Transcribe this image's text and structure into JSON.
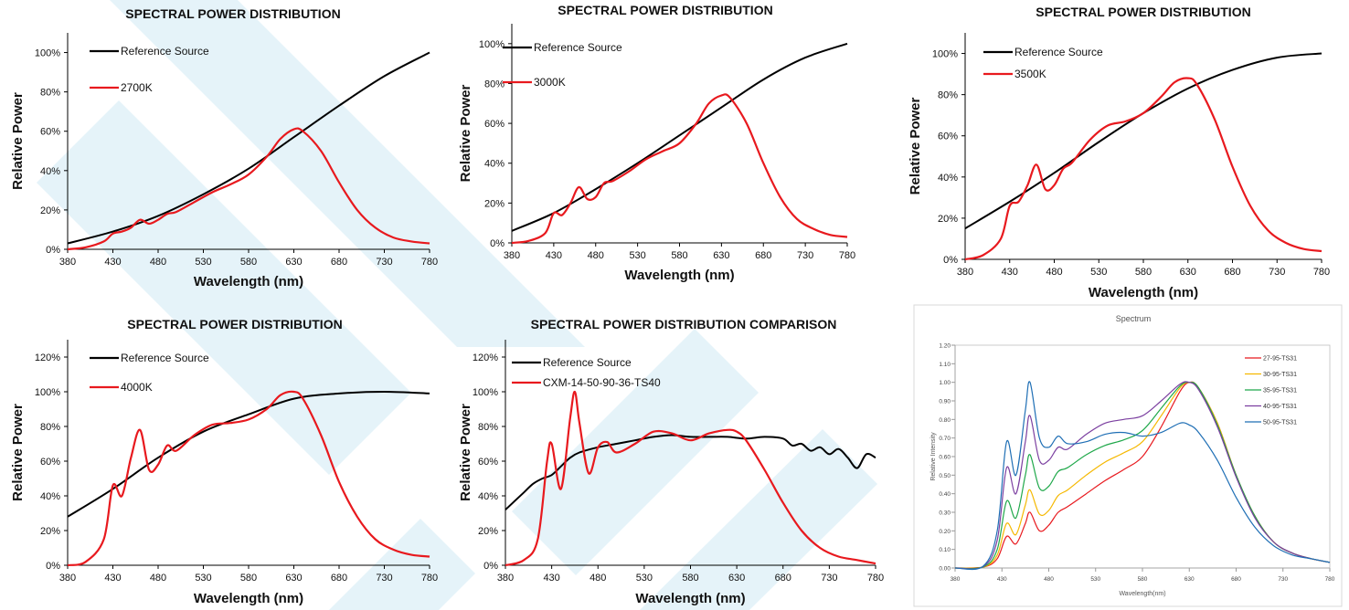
{
  "chart_data": [
    {
      "type": "line",
      "title": "SPECTRAL POWER DISTRIBUTION",
      "xlabel": "Wavelength (nm)",
      "ylabel": "Relative Power",
      "xlim": [
        380,
        780
      ],
      "ylim": [
        0,
        1.1
      ],
      "xticks": [
        380,
        430,
        480,
        530,
        580,
        630,
        680,
        730,
        780
      ],
      "xtick_labels": [
        "380",
        "430",
        "480",
        "530",
        "580",
        "630",
        "680",
        "730",
        "780"
      ],
      "yticks": [
        0,
        0.2,
        0.4,
        0.6,
        0.8,
        1.0
      ],
      "ytick_labels": [
        "0%",
        "20%",
        "40%",
        "60%",
        "80%",
        "100%"
      ],
      "legend": "top-left",
      "series": [
        {
          "name": "Reference Source",
          "color": "#000000",
          "x": [
            380,
            430,
            480,
            530,
            580,
            630,
            680,
            730,
            780
          ],
          "y": [
            0.03,
            0.09,
            0.17,
            0.28,
            0.41,
            0.57,
            0.73,
            0.88,
            1.0
          ]
        },
        {
          "name": "2700K",
          "color": "#e8191e",
          "x": [
            380,
            400,
            420,
            430,
            440,
            450,
            460,
            470,
            480,
            490,
            500,
            520,
            540,
            560,
            580,
            600,
            615,
            630,
            640,
            660,
            680,
            700,
            720,
            740,
            760,
            780
          ],
          "y": [
            0.0,
            0.01,
            0.04,
            0.08,
            0.09,
            0.11,
            0.15,
            0.13,
            0.15,
            0.18,
            0.19,
            0.24,
            0.29,
            0.33,
            0.38,
            0.47,
            0.56,
            0.61,
            0.6,
            0.5,
            0.34,
            0.2,
            0.11,
            0.06,
            0.04,
            0.03
          ]
        }
      ]
    },
    {
      "type": "line",
      "title": "SPECTRAL POWER DISTRIBUTION",
      "xlabel": "Wavelength (nm)",
      "ylabel": "Relative Power",
      "xlim": [
        380,
        780
      ],
      "ylim": [
        0,
        1.1
      ],
      "xticks": [
        380,
        430,
        480,
        530,
        580,
        630,
        680,
        730,
        780
      ],
      "xtick_labels": [
        "380",
        "430",
        "480",
        "530",
        "580",
        "630",
        "680",
        "730",
        "780"
      ],
      "yticks": [
        0,
        0.2,
        0.4,
        0.6,
        0.8,
        1.0
      ],
      "ytick_labels": [
        "0%",
        "20%",
        "40%",
        "60%",
        "80%",
        "100%"
      ],
      "legend": "top-left",
      "series": [
        {
          "name": "Reference Source",
          "color": "#000000",
          "x": [
            380,
            430,
            480,
            530,
            580,
            630,
            680,
            730,
            780
          ],
          "y": [
            0.06,
            0.15,
            0.27,
            0.4,
            0.54,
            0.68,
            0.82,
            0.93,
            1.0
          ]
        },
        {
          "name": "3000K",
          "color": "#e8191e",
          "x": [
            380,
            400,
            420,
            430,
            440,
            450,
            460,
            470,
            480,
            490,
            500,
            520,
            540,
            560,
            580,
            600,
            615,
            630,
            640,
            660,
            680,
            700,
            720,
            740,
            760,
            780
          ],
          "y": [
            0.0,
            0.01,
            0.05,
            0.15,
            0.14,
            0.2,
            0.28,
            0.22,
            0.23,
            0.3,
            0.31,
            0.36,
            0.42,
            0.46,
            0.5,
            0.6,
            0.7,
            0.74,
            0.73,
            0.6,
            0.4,
            0.23,
            0.12,
            0.07,
            0.04,
            0.03
          ]
        }
      ]
    },
    {
      "type": "line",
      "title": "SPECTRAL POWER DISTRIBUTION",
      "xlabel": "Wavelength (nm)",
      "ylabel": "Relative Power",
      "xlim": [
        380,
        780
      ],
      "ylim": [
        0,
        1.1
      ],
      "xticks": [
        380,
        430,
        480,
        530,
        580,
        630,
        680,
        730,
        780
      ],
      "xtick_labels": [
        "380",
        "430",
        "480",
        "530",
        "580",
        "630",
        "680",
        "730",
        "780"
      ],
      "yticks": [
        0,
        0.2,
        0.4,
        0.6,
        0.8,
        1.0
      ],
      "ytick_labels": [
        "0%",
        "20%",
        "40%",
        "60%",
        "80%",
        "100%"
      ],
      "legend": "top-left",
      "series": [
        {
          "name": "Reference Source",
          "color": "#000000",
          "x": [
            380,
            430,
            480,
            530,
            580,
            630,
            680,
            730,
            780
          ],
          "y": [
            0.15,
            0.28,
            0.42,
            0.57,
            0.71,
            0.83,
            0.92,
            0.98,
            1.0
          ]
        },
        {
          "name": "3500K",
          "color": "#e8191e",
          "x": [
            380,
            400,
            420,
            430,
            440,
            450,
            460,
            470,
            480,
            490,
            500,
            520,
            540,
            560,
            580,
            600,
            615,
            630,
            640,
            660,
            680,
            700,
            720,
            740,
            760,
            780
          ],
          "y": [
            0.0,
            0.02,
            0.1,
            0.26,
            0.28,
            0.36,
            0.46,
            0.34,
            0.36,
            0.44,
            0.47,
            0.58,
            0.65,
            0.67,
            0.71,
            0.79,
            0.86,
            0.88,
            0.85,
            0.68,
            0.45,
            0.26,
            0.14,
            0.08,
            0.05,
            0.04
          ]
        }
      ]
    },
    {
      "type": "line",
      "title": "SPECTRAL POWER DISTRIBUTION",
      "xlabel": "Wavelength (nm)",
      "ylabel": "Relative Power",
      "xlim": [
        380,
        780
      ],
      "ylim": [
        0,
        1.3
      ],
      "xticks": [
        380,
        430,
        480,
        530,
        580,
        630,
        680,
        730,
        780
      ],
      "xtick_labels": [
        "380",
        "430",
        "480",
        "530",
        "580",
        "630",
        "680",
        "730",
        "780"
      ],
      "yticks": [
        0,
        0.2,
        0.4,
        0.6,
        0.8,
        1.0,
        1.2
      ],
      "ytick_labels": [
        "0%",
        "20%",
        "40%",
        "60%",
        "80%",
        "100%",
        "120%"
      ],
      "legend": "top-left",
      "series": [
        {
          "name": "Reference Source",
          "color": "#000000",
          "x": [
            380,
            430,
            480,
            530,
            580,
            630,
            680,
            730,
            780
          ],
          "y": [
            0.28,
            0.44,
            0.62,
            0.77,
            0.87,
            0.96,
            0.99,
            1.0,
            0.99
          ]
        },
        {
          "name": "4000K",
          "color": "#e8191e",
          "x": [
            380,
            400,
            420,
            430,
            440,
            450,
            460,
            470,
            480,
            490,
            500,
            520,
            540,
            560,
            580,
            600,
            615,
            630,
            640,
            660,
            680,
            700,
            720,
            740,
            760,
            780
          ],
          "y": [
            0.0,
            0.02,
            0.15,
            0.46,
            0.4,
            0.62,
            0.78,
            0.55,
            0.58,
            0.69,
            0.66,
            0.75,
            0.81,
            0.82,
            0.84,
            0.9,
            0.98,
            1.0,
            0.96,
            0.75,
            0.48,
            0.28,
            0.15,
            0.09,
            0.06,
            0.05
          ]
        }
      ]
    },
    {
      "type": "line",
      "title": "SPECTRAL POWER DISTRIBUTION COMPARISON",
      "xlabel": "Wavelength (nm)",
      "ylabel": "Relative Power",
      "xlim": [
        380,
        780
      ],
      "ylim": [
        0,
        1.3
      ],
      "xticks": [
        380,
        430,
        480,
        530,
        580,
        630,
        680,
        730,
        780
      ],
      "xtick_labels": [
        "380",
        "430",
        "480",
        "530",
        "580",
        "630",
        "680",
        "730",
        "780"
      ],
      "yticks": [
        0,
        0.2,
        0.4,
        0.6,
        0.8,
        1.0,
        1.2
      ],
      "ytick_labels": [
        "0%",
        "20%",
        "40%",
        "60%",
        "80%",
        "100%",
        "120%"
      ],
      "legend": "top-left",
      "series": [
        {
          "name": "Reference Source",
          "color": "#000000",
          "x": [
            380,
            390,
            400,
            410,
            420,
            430,
            440,
            450,
            460,
            480,
            500,
            520,
            540,
            560,
            580,
            600,
            620,
            640,
            660,
            680,
            690,
            700,
            710,
            720,
            730,
            740,
            750,
            760,
            770,
            780
          ],
          "y": [
            0.32,
            0.37,
            0.42,
            0.47,
            0.5,
            0.52,
            0.57,
            0.62,
            0.65,
            0.68,
            0.7,
            0.72,
            0.74,
            0.75,
            0.74,
            0.74,
            0.74,
            0.73,
            0.74,
            0.73,
            0.69,
            0.7,
            0.66,
            0.68,
            0.64,
            0.67,
            0.62,
            0.56,
            0.64,
            0.62
          ]
        },
        {
          "name": "CXM-14-50-90-36-TS40",
          "color": "#e8191e",
          "x": [
            380,
            400,
            415,
            425,
            430,
            440,
            450,
            455,
            460,
            470,
            480,
            490,
            500,
            520,
            540,
            560,
            580,
            600,
            620,
            630,
            640,
            660,
            680,
            700,
            720,
            740,
            760,
            780
          ],
          "y": [
            0.0,
            0.03,
            0.15,
            0.6,
            0.7,
            0.44,
            0.85,
            1.0,
            0.82,
            0.53,
            0.68,
            0.71,
            0.65,
            0.7,
            0.77,
            0.76,
            0.72,
            0.76,
            0.78,
            0.77,
            0.72,
            0.55,
            0.36,
            0.2,
            0.1,
            0.05,
            0.03,
            0.01
          ]
        }
      ]
    },
    {
      "type": "line",
      "title": "Spectrum",
      "xlabel": "Wavelength(nm)",
      "ylabel": "Relative Intensity",
      "xlim": [
        380,
        780
      ],
      "ylim": [
        0,
        1.2
      ],
      "xticks": [
        380,
        430,
        480,
        530,
        580,
        630,
        680,
        730,
        780
      ],
      "xtick_labels": [
        "380",
        "430",
        "480",
        "530",
        "580",
        "630",
        "680",
        "730",
        "780"
      ],
      "yticks": [
        0,
        0.1,
        0.2,
        0.3,
        0.4,
        0.5,
        0.6,
        0.7,
        0.8,
        0.9,
        1.0,
        1.1,
        1.2
      ],
      "ytick_labels": [
        "0.00",
        "0.10",
        "0.20",
        "0.30",
        "0.40",
        "0.50",
        "0.60",
        "0.70",
        "0.80",
        "0.90",
        "1.00",
        "1.10",
        "1.20"
      ],
      "legend": "right",
      "series": [
        {
          "name": "27-95-TS31",
          "color": "#e8191e",
          "x": [
            380,
            410,
            425,
            435,
            445,
            455,
            460,
            470,
            480,
            490,
            500,
            520,
            540,
            560,
            580,
            600,
            620,
            630,
            640,
            660,
            680,
            700,
            720,
            740,
            760,
            780
          ],
          "y": [
            0.0,
            0.005,
            0.05,
            0.17,
            0.13,
            0.24,
            0.3,
            0.2,
            0.23,
            0.3,
            0.33,
            0.4,
            0.47,
            0.53,
            0.6,
            0.76,
            0.95,
            1.0,
            0.97,
            0.78,
            0.5,
            0.28,
            0.14,
            0.08,
            0.05,
            0.03
          ]
        },
        {
          "name": "30-95-TS31",
          "color": "#f5b800",
          "x": [
            380,
            410,
            425,
            435,
            445,
            455,
            460,
            470,
            480,
            490,
            500,
            520,
            540,
            560,
            580,
            600,
            620,
            630,
            640,
            660,
            680,
            700,
            720,
            740,
            760,
            780
          ],
          "y": [
            0.0,
            0.005,
            0.07,
            0.24,
            0.18,
            0.34,
            0.42,
            0.29,
            0.31,
            0.39,
            0.42,
            0.5,
            0.57,
            0.62,
            0.68,
            0.82,
            0.97,
            1.0,
            0.97,
            0.78,
            0.5,
            0.28,
            0.14,
            0.08,
            0.05,
            0.03
          ]
        },
        {
          "name": "35-95-TS31",
          "color": "#1fa84a",
          "x": [
            380,
            410,
            425,
            435,
            445,
            455,
            460,
            470,
            480,
            490,
            500,
            520,
            540,
            560,
            580,
            600,
            620,
            630,
            640,
            660,
            680,
            700,
            720,
            740,
            760,
            780
          ],
          "y": [
            0.0,
            0.006,
            0.1,
            0.36,
            0.27,
            0.5,
            0.61,
            0.43,
            0.44,
            0.52,
            0.54,
            0.61,
            0.66,
            0.69,
            0.74,
            0.86,
            0.98,
            1.0,
            0.97,
            0.77,
            0.5,
            0.28,
            0.14,
            0.08,
            0.05,
            0.03
          ]
        },
        {
          "name": "40-95-TS31",
          "color": "#7b3fa0",
          "x": [
            380,
            410,
            425,
            435,
            445,
            455,
            460,
            470,
            480,
            490,
            500,
            520,
            540,
            560,
            580,
            600,
            620,
            630,
            640,
            660,
            680,
            700,
            720,
            740,
            760,
            780
          ],
          "y": [
            0.0,
            0.008,
            0.15,
            0.54,
            0.4,
            0.68,
            0.82,
            0.58,
            0.58,
            0.65,
            0.64,
            0.72,
            0.78,
            0.8,
            0.82,
            0.9,
            0.99,
            1.0,
            0.96,
            0.76,
            0.49,
            0.27,
            0.14,
            0.08,
            0.05,
            0.03
          ]
        },
        {
          "name": "50-95-TS31",
          "color": "#1f6fb5",
          "x": [
            380,
            410,
            425,
            435,
            445,
            455,
            460,
            470,
            480,
            490,
            500,
            520,
            540,
            560,
            580,
            600,
            620,
            630,
            640,
            660,
            680,
            700,
            720,
            740,
            760,
            780
          ],
          "y": [
            0.0,
            0.01,
            0.2,
            0.68,
            0.5,
            0.85,
            1.0,
            0.7,
            0.65,
            0.71,
            0.67,
            0.68,
            0.72,
            0.73,
            0.71,
            0.73,
            0.78,
            0.77,
            0.73,
            0.58,
            0.38,
            0.22,
            0.12,
            0.07,
            0.05,
            0.03
          ]
        }
      ]
    }
  ]
}
